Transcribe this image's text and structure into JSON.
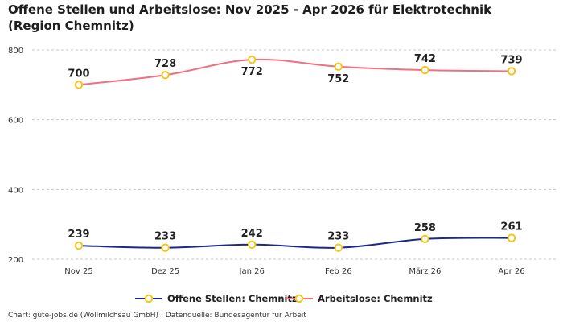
{
  "chart_data": {
    "type": "line",
    "title": "Offene Stellen und Arbeitslose: Nov 2025 - Apr 2026 für Elektrotechnik (Region Chemnitz)",
    "categories": [
      "Nov 25",
      "Dez 25",
      "Jan 26",
      "Feb 26",
      "März 26",
      "Apr 26"
    ],
    "series": [
      {
        "name": "Offene Stellen: Chemnitz",
        "values": [
          239,
          233,
          242,
          233,
          258,
          261
        ],
        "color": "#1a2a8a"
      },
      {
        "name": "Arbeitslose: Chemnitz",
        "values": [
          700,
          728,
          772,
          752,
          742,
          739
        ],
        "color": "#f07080"
      }
    ],
    "marker_color": "#f5c518",
    "ylim": [
      200,
      800
    ],
    "yticks": [
      200,
      400,
      600,
      800
    ],
    "grid": true,
    "legend_position": "bottom-center",
    "xlabel": "",
    "ylabel": ""
  },
  "footer": {
    "credit": "Chart: gute-jobs.de (Wollmilchsau GmbH) | Datenquelle: Bundesagentur für Arbeit"
  }
}
